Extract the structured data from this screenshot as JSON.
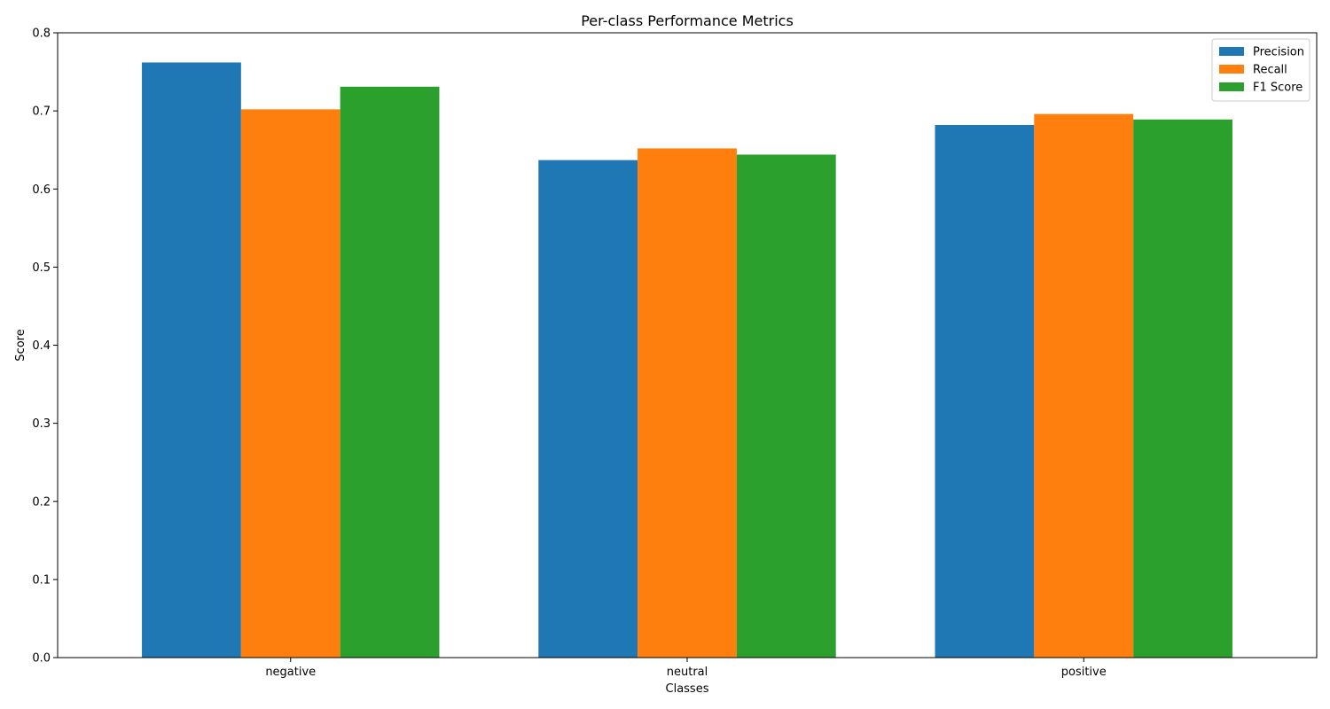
{
  "chart_data": {
    "type": "bar",
    "title": "Per-class Performance Metrics",
    "xlabel": "Classes",
    "ylabel": "Score",
    "categories": [
      "negative",
      "neutral",
      "positive"
    ],
    "series": [
      {
        "name": "Precision",
        "color": "#1f77b4",
        "values": [
          0.762,
          0.637,
          0.682
        ]
      },
      {
        "name": "Recall",
        "color": "#ff7f0e",
        "values": [
          0.702,
          0.652,
          0.696
        ]
      },
      {
        "name": "F1 Score",
        "color": "#2ca02c",
        "values": [
          0.731,
          0.644,
          0.689
        ]
      }
    ],
    "ylim": [
      0,
      0.8
    ],
    "yticks": [
      "0.0",
      "0.1",
      "0.2",
      "0.3",
      "0.4",
      "0.5",
      "0.6",
      "0.7",
      "0.8"
    ],
    "grid": false,
    "legend_position": "top-right"
  }
}
